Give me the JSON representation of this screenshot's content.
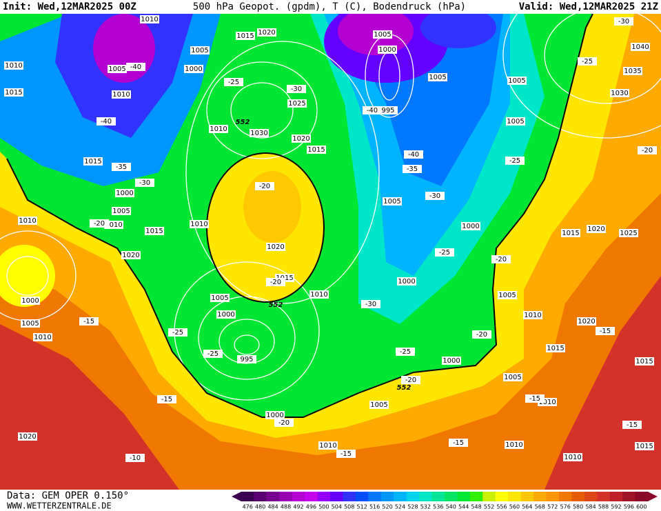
{
  "header": {
    "init": "Init: Wed,12MAR2025 00Z",
    "title": "500 hPa Geopot. (gpdm), T (C), Bodendruck (hPa)",
    "valid": "Valid: Wed,12MAR2025 21Z"
  },
  "footer": {
    "data": "Data: GEM OPER 0.150°",
    "site": "WWW.WETTERZENTRALE.DE"
  },
  "colorbar": {
    "labels": [
      476,
      480,
      484,
      488,
      492,
      496,
      500,
      504,
      508,
      512,
      516,
      520,
      524,
      528,
      532,
      536,
      540,
      544,
      548,
      552,
      556,
      560,
      564,
      568,
      572,
      576,
      580,
      584,
      588,
      592,
      596,
      600
    ],
    "colors": [
      "#3c0050",
      "#5a0070",
      "#780090",
      "#9600b0",
      "#b400d0",
      "#c800f0",
      "#9600ff",
      "#6400ff",
      "#3232ff",
      "#0050ff",
      "#0078ff",
      "#0096ff",
      "#00b4ff",
      "#00d2f0",
      "#00e6c8",
      "#00e696",
      "#00e664",
      "#00e632",
      "#32f000",
      "#c8f000",
      "#ffff00",
      "#ffe600",
      "#ffc800",
      "#ffaa00",
      "#ff9600",
      "#f07800",
      "#e65a00",
      "#dc4614",
      "#d23228",
      "#be1e28",
      "#a01428",
      "#8c0a28"
    ]
  },
  "map": {
    "pressure_labels": [
      "1010",
      "1010",
      "1015",
      "1005",
      "1010",
      "1015",
      "1000",
      "1005",
      "1010",
      "1010",
      "1015",
      "1020",
      "1000",
      "1005",
      "1010",
      "1015",
      "1020",
      "1005",
      "1000",
      "1025",
      "1030",
      "1010",
      "1020",
      "1015",
      "1010",
      "1020",
      "1015",
      "1010",
      "1005",
      "1000",
      "995",
      "1000",
      "1005",
      "1000",
      "995",
      "1005",
      "1005",
      "1005",
      "1005",
      "1000",
      "1000",
      "1000",
      "1005",
      "1010",
      "1005",
      "1010",
      "1005",
      "1015",
      "1020",
      "1025",
      "1020",
      "1015",
      "1015",
      "1010",
      "1010",
      "1010",
      "1015",
      "1020",
      "1040",
      "1035",
      "1030"
    ],
    "temperature_labels": [
      "-40",
      "-25",
      "-30",
      "-40",
      "-35",
      "-30",
      "-20",
      "-20",
      "-20",
      "-40",
      "-40",
      "-35",
      "-30",
      "-25",
      "-25",
      "-30",
      "-20",
      "-25",
      "-20",
      "-30",
      "-20",
      "-25",
      "-25",
      "-25",
      "-20",
      "-15",
      "-15",
      "-20",
      "-15",
      "-15",
      "-10",
      "-15",
      "-15",
      "-15"
    ],
    "geopotential_labels": [
      "552",
      "552",
      "552"
    ]
  }
}
